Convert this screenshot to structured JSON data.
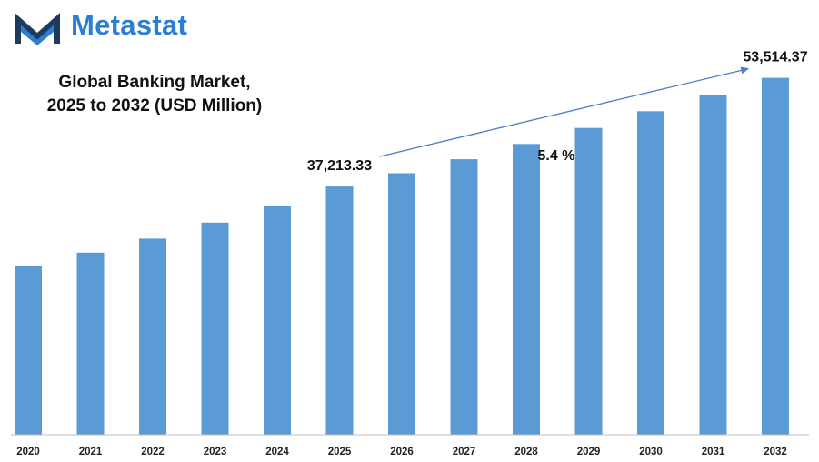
{
  "brand": {
    "name": "Metastat",
    "icon": "metastat-logo-icon",
    "color": "#2a7fd0"
  },
  "chart_data": {
    "type": "bar",
    "title_lines": [
      "Global Banking Market,",
      "2025 to 2032 (USD Million)"
    ],
    "xlabel": "",
    "ylabel": "",
    "categories": [
      "2020",
      "2021",
      "2022",
      "2023",
      "2024",
      "2025",
      "2026",
      "2027",
      "2028",
      "2029",
      "2030",
      "2031",
      "2032"
    ],
    "values": [
      25300,
      27300,
      29400,
      31800,
      34300,
      37213.33,
      39200,
      41300,
      43600,
      46000,
      48500,
      51000,
      53514.37
    ],
    "ylim": [
      0,
      57000
    ],
    "grid": false,
    "bar_color": "#5b9bd5",
    "data_labels": [
      {
        "category": "2025",
        "text": "37,213.33"
      },
      {
        "category": "2032",
        "text": "53,514.37"
      }
    ],
    "annotation": {
      "text": "5.4 %",
      "from": "2025",
      "to": "2032"
    }
  }
}
